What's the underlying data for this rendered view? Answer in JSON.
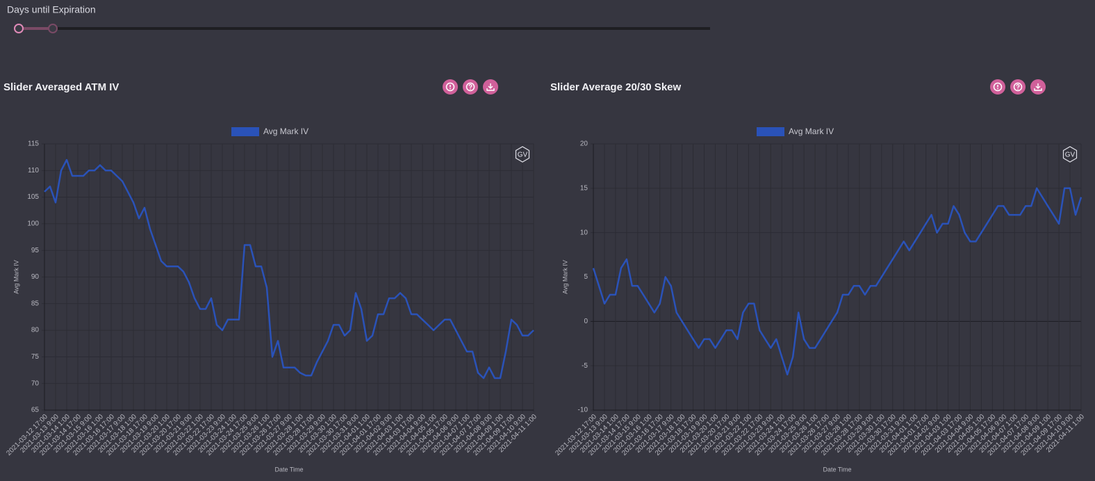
{
  "slider": {
    "label": "Days until Expiration"
  },
  "chart_data": [
    {
      "type": "line",
      "title": "Slider Averaged ATM IV",
      "logo": "GV",
      "x_label": "Date Time",
      "y_label": "Avg Mark IV",
      "grid": true,
      "categories": [
        "2021-03-12 17:00",
        null,
        "2021-03-13 9:00",
        null,
        "2021-03-14 1:00",
        null,
        "2021-03-14 17:00",
        null,
        "2021-03-15 9:00",
        null,
        "2021-03-16 1:00",
        null,
        "2021-03-16 17:00",
        null,
        "2021-03-17 9:00",
        null,
        "2021-03-18 1:00",
        null,
        "2021-03-18 17:00",
        null,
        "2021-03-19 9:00",
        null,
        "2021-03-20 1:00",
        null,
        "2021-03-20 17:00",
        null,
        "2021-03-21 9:00",
        null,
        "2021-03-22 1:00",
        null,
        "2021-03-22 17:00",
        null,
        "2021-03-23 9:00",
        null,
        "2021-03-24 1:00",
        null,
        "2021-03-24 17:00",
        null,
        "2021-03-25 9:00",
        null,
        "2021-03-26 1:00",
        null,
        "2021-03-26 17:00",
        null,
        "2021-03-27 9:00",
        null,
        "2021-03-28 1:00",
        null,
        "2021-03-28 17:00",
        null,
        "2021-03-29 9:00",
        null,
        "2021-03-30 1:00",
        null,
        "2021-03-30 17:00",
        null,
        "2021-03-31 9:00",
        null,
        "2021-04-01 1:00",
        null,
        "2021-04-01 17:00",
        null,
        "2021-04-02 9:00",
        null,
        "2021-04-03 1:00",
        null,
        "2021-04-03 17:00",
        null,
        "2021-04-04 9:00",
        null,
        "2021-04-05 1:00",
        null,
        "2021-04-05 17:00",
        null,
        "2021-04-06 9:00",
        null,
        "2021-04-07 1:00",
        null,
        "2021-04-07 17:00",
        null,
        "2021-04-08 9:00",
        null,
        "2021-04-09 1:00",
        null,
        "2021-04-09 17:00",
        null,
        "2021-04-10 9:00",
        null,
        "2021-04-11 1:00"
      ],
      "series": [
        {
          "name": "Avg Mark IV",
          "color": "#2a52b8",
          "values": [
            106,
            107,
            104,
            110,
            112,
            109,
            109,
            109,
            110,
            110,
            111,
            110,
            110,
            109,
            108,
            106,
            104,
            101,
            103,
            99,
            96,
            93,
            92,
            92,
            92,
            91,
            89,
            86,
            84,
            84,
            86,
            81,
            80,
            82,
            82,
            82,
            96,
            96,
            92,
            92,
            88,
            75,
            78,
            73,
            73,
            73,
            72,
            71.5,
            71.5,
            74,
            76,
            78,
            81,
            81,
            79,
            80,
            87,
            84,
            78,
            79,
            83,
            83,
            86,
            86,
            87,
            86,
            83,
            83,
            82,
            81,
            80,
            81,
            82,
            82,
            80,
            78,
            76,
            76,
            72,
            71,
            73,
            71,
            71,
            76,
            82,
            81,
            79,
            79,
            80
          ]
        }
      ],
      "ylim": [
        65,
        115
      ],
      "yticks": [
        65,
        70,
        75,
        80,
        85,
        90,
        95,
        100,
        105,
        110,
        115
      ]
    },
    {
      "type": "line",
      "title": "Slider Average 20/30 Skew",
      "logo": "GV",
      "x_label": "Date Time",
      "y_label": "Avg Mark IV",
      "grid": true,
      "categories": [
        "2021-03-12 17:00",
        null,
        "2021-03-13 9:00",
        null,
        "2021-03-14 1:00",
        null,
        "2021-03-14 17:00",
        null,
        "2021-03-15 9:00",
        null,
        "2021-03-16 1:00",
        null,
        "2021-03-16 17:00",
        null,
        "2021-03-17 9:00",
        null,
        "2021-03-18 1:00",
        null,
        "2021-03-18 17:00",
        null,
        "2021-03-19 9:00",
        null,
        "2021-03-20 1:00",
        null,
        "2021-03-20 17:00",
        null,
        "2021-03-21 9:00",
        null,
        "2021-03-22 1:00",
        null,
        "2021-03-22 17:00",
        null,
        "2021-03-23 9:00",
        null,
        "2021-03-24 1:00",
        null,
        "2021-03-24 17:00",
        null,
        "2021-03-25 9:00",
        null,
        "2021-03-26 1:00",
        null,
        "2021-03-26 17:00",
        null,
        "2021-03-27 9:00",
        null,
        "2021-03-28 1:00",
        null,
        "2021-03-28 17:00",
        null,
        "2021-03-29 9:00",
        null,
        "2021-03-30 1:00",
        null,
        "2021-03-30 17:00",
        null,
        "2021-03-31 9:00",
        null,
        "2021-04-01 1:00",
        null,
        "2021-04-01 17:00",
        null,
        "2021-04-02 9:00",
        null,
        "2021-04-03 1:00",
        null,
        "2021-04-03 17:00",
        null,
        "2021-04-04 9:00",
        null,
        "2021-04-05 1:00",
        null,
        "2021-04-05 17:00",
        null,
        "2021-04-06 9:00",
        null,
        "2021-04-07 1:00",
        null,
        "2021-04-07 17:00",
        null,
        "2021-04-08 9:00",
        null,
        "2021-04-09 1:00",
        null,
        "2021-04-09 17:00",
        null,
        "2021-04-10 9:00",
        null,
        "2021-04-11 1:00"
      ],
      "series": [
        {
          "name": "Avg Mark IV",
          "color": "#2a52b8",
          "values": [
            6,
            4,
            2,
            3,
            3,
            6,
            7,
            4,
            4,
            3,
            2,
            1,
            2,
            5,
            4,
            1,
            0,
            -1,
            -2,
            -3,
            -2,
            -2,
            -3,
            -2,
            -1,
            -1,
            -2,
            1,
            2,
            2,
            -1,
            -2,
            -3,
            -2,
            -4,
            -6,
            -4,
            1,
            -2,
            -3,
            -3,
            -2,
            -1,
            0,
            1,
            3,
            3,
            4,
            4,
            3,
            4,
            4,
            5,
            6,
            7,
            8,
            9,
            8,
            9,
            10,
            11,
            12,
            10,
            11,
            11,
            13,
            12,
            10,
            9,
            9,
            10,
            11,
            12,
            13,
            13,
            12,
            12,
            12,
            13,
            13,
            15,
            14,
            13,
            12,
            11,
            15,
            15,
            12,
            14
          ]
        }
      ],
      "ylim": [
        -10,
        20
      ],
      "yticks": [
        -10,
        -5,
        0,
        5,
        10,
        15,
        20
      ]
    }
  ]
}
